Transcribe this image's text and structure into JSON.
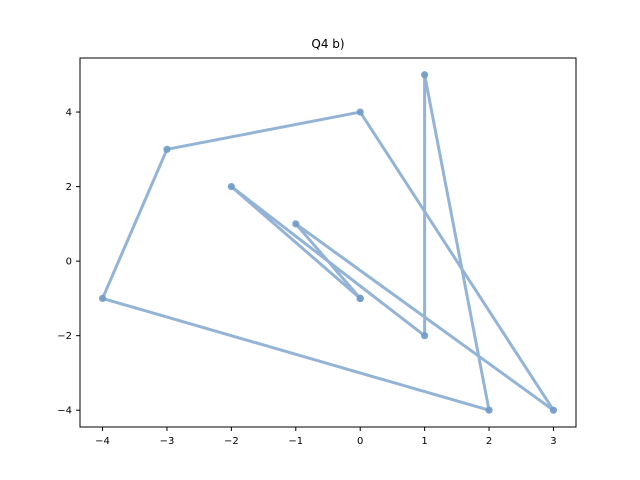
{
  "chart_data": {
    "type": "line",
    "title": "Q4 b)",
    "xlabel": "",
    "ylabel": "",
    "xlim": [
      -4.35,
      3.35
    ],
    "ylim": [
      -4.45,
      5.45
    ],
    "xticks": [
      -4,
      -3,
      -2,
      -1,
      0,
      1,
      2,
      3
    ],
    "yticks": [
      -4,
      -2,
      0,
      2,
      4
    ],
    "xtick_labels": [
      "−4",
      "−3",
      "−2",
      "−1",
      "0",
      "1",
      "2",
      "3"
    ],
    "ytick_labels": [
      "−4",
      "−2",
      "0",
      "2",
      "4"
    ],
    "grid": false,
    "series": [
      {
        "color": "#6f9bc8",
        "x": [
          0,
          -2,
          1,
          1,
          2,
          -4,
          -3,
          0,
          3,
          -1,
          0
        ],
        "y": [
          -1,
          2,
          -2,
          5,
          -4,
          -1,
          3,
          4,
          -4,
          1,
          -1
        ]
      }
    ]
  }
}
